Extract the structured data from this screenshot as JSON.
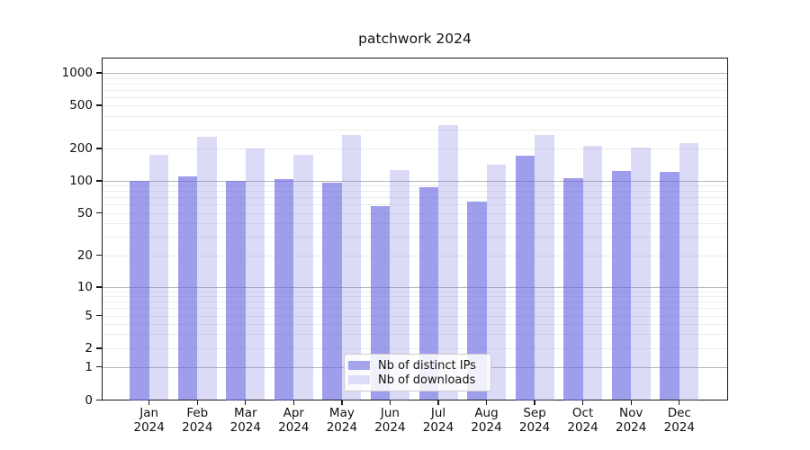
{
  "chart_data": {
    "type": "bar",
    "title": "patchwork 2024",
    "categories": [
      "Jan",
      "Feb",
      "Mar",
      "Apr",
      "May",
      "Jun",
      "Jul",
      "Aug",
      "Sep",
      "Oct",
      "Nov",
      "Dec"
    ],
    "category_year": "2024",
    "series": [
      {
        "name": "Nb of distinct IPs",
        "color": "rgba(98,98,224,0.62)",
        "solid_color": "#a4a4ed",
        "values": [
          100,
          111,
          100,
          104,
          96,
          58,
          87,
          64,
          171,
          107,
          123,
          122
        ]
      },
      {
        "name": "Nb of downloads",
        "color": "rgba(125,125,230,0.28)",
        "solid_color": "#dcdcf8",
        "values": [
          173,
          254,
          199,
          173,
          266,
          126,
          330,
          142,
          266,
          211,
          203,
          224
        ]
      }
    ],
    "y_axis": {
      "scale": "log-with-zero",
      "ylim": [
        0,
        1400
      ],
      "tick_values": [
        1000,
        500,
        200,
        100,
        50,
        20,
        10,
        5,
        2,
        1,
        0
      ],
      "tick_labels": [
        "1000",
        "500",
        "200",
        "100",
        "50",
        "20",
        "10",
        "5",
        "2",
        "1",
        "0"
      ],
      "minor_gridline_values": [
        2,
        3,
        4,
        5,
        6,
        7,
        8,
        9,
        20,
        30,
        40,
        50,
        60,
        70,
        80,
        90,
        200,
        300,
        400,
        500,
        600,
        700,
        800,
        900
      ],
      "major_gridline_values": [
        1,
        10,
        100,
        1000
      ]
    },
    "x_axis": {
      "tick_count": 12
    },
    "legend": {
      "position": "lower center",
      "entries": [
        "Nb of distinct IPs",
        "Nb of downloads"
      ]
    },
    "grid": true
  }
}
